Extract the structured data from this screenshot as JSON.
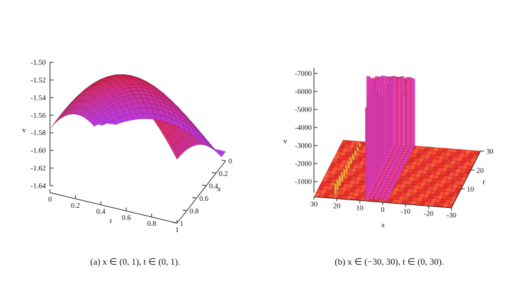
{
  "chart_data": [
    {
      "type": "surface3d",
      "title": "",
      "caption": "(a) x ∈ (0, 1), t ∈ (0, 1).",
      "zlabel": "v",
      "xlabel": "x",
      "tlabel": "t",
      "z_ticks": [
        "-1.50",
        "-1.52",
        "-1.54",
        "-1.56",
        "-1.58",
        "-1.60",
        "-1.62",
        "-1.64"
      ],
      "t_ticks": [
        "0",
        "0.2",
        "0.4",
        "0.6",
        "0.8",
        "1"
      ],
      "x_ticks": [
        "0",
        "0.2",
        "0.4",
        "0.6",
        "0.8",
        "1"
      ],
      "x_range": [
        0,
        1
      ],
      "t_range": [
        0,
        1
      ],
      "z_range": [
        -1.65,
        -1.49
      ],
      "colors": {
        "surface_high": "#e8243a",
        "surface_low": "#b53cf0",
        "mesh": "#3a0010"
      }
    },
    {
      "type": "surface3d",
      "title": "",
      "caption": "(b) x ∈ (−30, 30), t ∈ (0, 30).",
      "zlabel": "v",
      "xlabel": "x",
      "tlabel": "t",
      "z_ticks": [
        "-7000",
        "-6000",
        "-5000",
        "-4000",
        "-3000",
        "-2000",
        "-1000"
      ],
      "x_ticks": [
        "30",
        "20",
        "10",
        "0",
        "-10",
        "-20",
        "-30"
      ],
      "t_ticks": [
        "30",
        "20",
        "10"
      ],
      "x_range": [
        -30,
        30
      ],
      "t_range": [
        0,
        30
      ],
      "z_range": [
        0,
        -7000
      ],
      "colors": {
        "surface_high": "#ff4040",
        "surface_low": "#d21a6e",
        "spike": "#e040c0",
        "ridge": "#f0c040"
      }
    }
  ]
}
